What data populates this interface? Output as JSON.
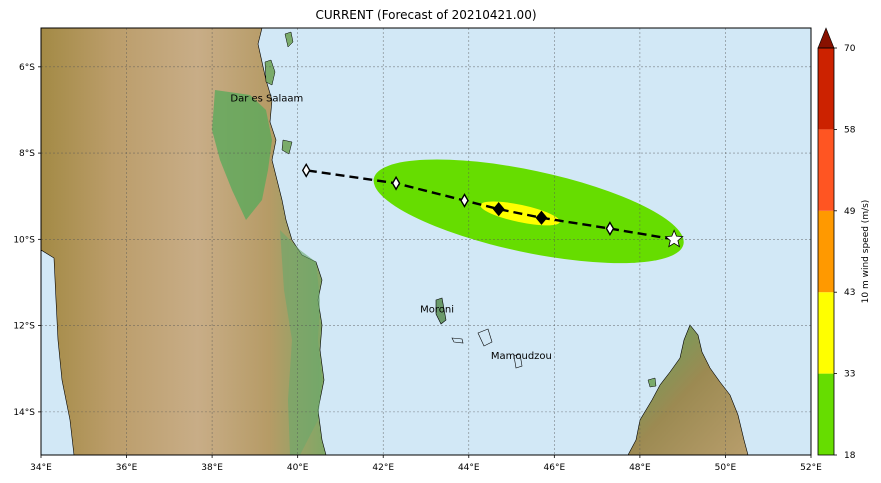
{
  "title": "CURRENT (Forecast of 20210421.00)",
  "map": {
    "extent": {
      "lon": [
        34,
        52
      ],
      "lat": [
        -15,
        -5.1
      ]
    },
    "lon_ticks": [
      "34°E",
      "36°E",
      "38°E",
      "40°E",
      "42°E",
      "44°E",
      "46°E",
      "48°E",
      "50°E",
      "52°E"
    ],
    "lat_ticks": [
      "6°S",
      "8°S",
      "10°S",
      "12°S",
      "14°S"
    ],
    "grid": true,
    "ocean_color": "#d2e8f6",
    "cities": [
      {
        "name": "Dar es Salaam",
        "lon": 39.28,
        "lat": -6.8
      },
      {
        "name": "Moroni",
        "lon": 43.26,
        "lat": -11.7
      },
      {
        "name": "Mamoudzou",
        "lon": 45.23,
        "lat": -12.78
      }
    ]
  },
  "chart_data": {
    "type": "map",
    "track": [
      {
        "lon": 48.8,
        "lat": -10.0,
        "marker": "star"
      },
      {
        "lon": 47.3,
        "lat": -9.75,
        "marker": "diamond-open"
      },
      {
        "lon": 45.7,
        "lat": -9.5,
        "marker": "diamond-filled"
      },
      {
        "lon": 44.7,
        "lat": -9.3,
        "marker": "diamond-filled"
      },
      {
        "lon": 43.9,
        "lat": -9.1,
        "marker": "diamond-open"
      },
      {
        "lon": 42.3,
        "lat": -8.7,
        "marker": "diamond-open"
      },
      {
        "lon": 40.2,
        "lat": -8.4,
        "marker": "diamond-open"
      }
    ],
    "wind_swaths": [
      {
        "min_speed": 18,
        "color": "#66dd00",
        "center": {
          "lon": 45.4,
          "lat": -9.35
        },
        "half_lon": 3.7,
        "half_lat": 0.95,
        "tilt_deg": 12
      },
      {
        "min_speed": 33,
        "color": "#ffff00",
        "center": {
          "lon": 45.2,
          "lat": -9.4
        },
        "half_lon": 0.95,
        "half_lat": 0.2,
        "tilt_deg": 12
      }
    ],
    "colorbar": {
      "label": "10 m wind speed (m/s)",
      "ticks": [
        "18",
        "33",
        "43",
        "49",
        "58",
        "70"
      ],
      "colors": [
        "#66dd00",
        "#ffff00",
        "#ff9900",
        "#ff5522",
        "#cc2200"
      ],
      "extend_color": "#881100"
    }
  }
}
